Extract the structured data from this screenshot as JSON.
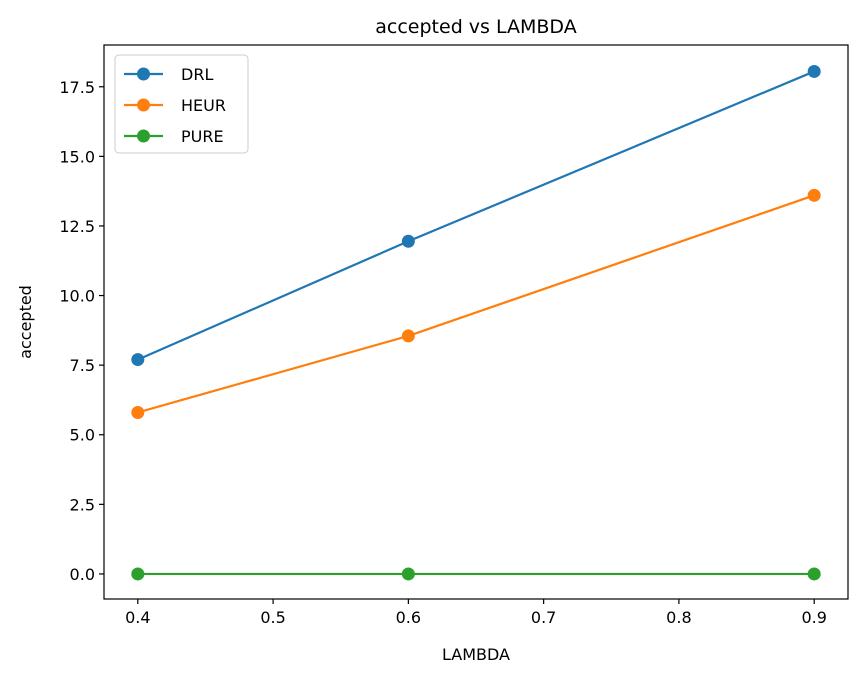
{
  "chart_data": {
    "type": "line",
    "title": "accepted vs LAMBDA",
    "xlabel": "LAMBDA",
    "ylabel": "accepted",
    "x": [
      0.4,
      0.6,
      0.9
    ],
    "xlim": [
      0.375,
      0.925
    ],
    "ylim": [
      -0.9,
      19.0
    ],
    "xticks": [
      0.4,
      0.5,
      0.6,
      0.7,
      0.8,
      0.9
    ],
    "xtick_labels": [
      "0.4",
      "0.5",
      "0.6",
      "0.7",
      "0.8",
      "0.9"
    ],
    "yticks": [
      0,
      2.5,
      5,
      7.5,
      10,
      12.5,
      15,
      17.5
    ],
    "ytick_labels": [
      "0.0",
      "2.5",
      "5.0",
      "7.5",
      "10.0",
      "12.5",
      "15.0",
      "17.5"
    ],
    "grid": false,
    "legend_position": "top-left",
    "series": [
      {
        "name": "DRL",
        "color": "#1f77b4",
        "values": [
          7.7,
          11.95,
          18.05
        ]
      },
      {
        "name": "HEUR",
        "color": "#ff7f0e",
        "values": [
          5.8,
          8.55,
          13.6
        ]
      },
      {
        "name": "PURE",
        "color": "#2ca02c",
        "values": [
          0,
          0,
          0
        ]
      }
    ]
  }
}
